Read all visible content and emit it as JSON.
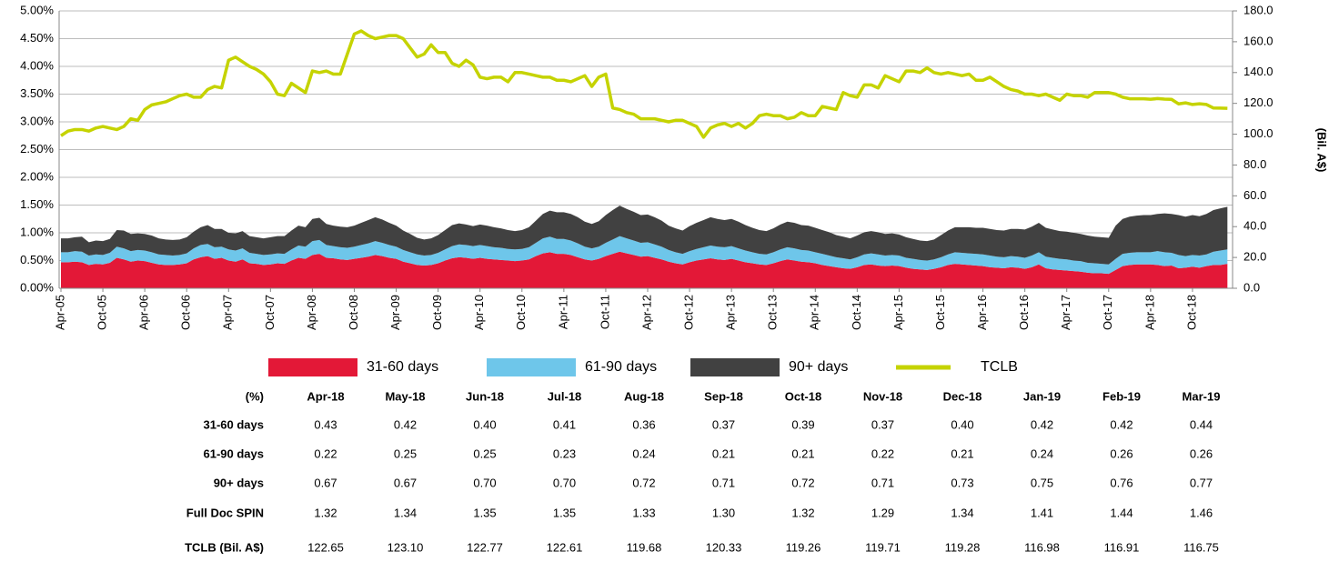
{
  "chart_data": {
    "type": "stacked-area-line",
    "categories": [
      "Apr-05",
      null,
      null,
      null,
      null,
      null,
      "Oct-05",
      null,
      null,
      null,
      null,
      null,
      "Apr-06",
      null,
      null,
      null,
      null,
      null,
      "Oct-06",
      null,
      null,
      null,
      null,
      null,
      "Apr-07",
      null,
      null,
      null,
      null,
      null,
      "Oct-07",
      null,
      null,
      null,
      null,
      null,
      "Apr-08",
      null,
      null,
      null,
      null,
      null,
      "Oct-08",
      null,
      null,
      null,
      null,
      null,
      "Apr-09",
      null,
      null,
      null,
      null,
      null,
      "Oct-09",
      null,
      null,
      null,
      null,
      null,
      "Apr-10",
      null,
      null,
      null,
      null,
      null,
      "Oct-10",
      null,
      null,
      null,
      null,
      null,
      "Apr-11",
      null,
      null,
      null,
      null,
      null,
      "Oct-11",
      null,
      null,
      null,
      null,
      null,
      "Apr-12",
      null,
      null,
      null,
      null,
      null,
      "Oct-12",
      null,
      null,
      null,
      null,
      null,
      "Apr-13",
      null,
      null,
      null,
      null,
      null,
      "Oct-13",
      null,
      null,
      null,
      null,
      null,
      "Apr-14",
      null,
      null,
      null,
      null,
      null,
      "Oct-14",
      null,
      null,
      null,
      null,
      null,
      "Apr-15",
      null,
      null,
      null,
      null,
      null,
      "Oct-15",
      null,
      null,
      null,
      null,
      null,
      "Apr-16",
      null,
      null,
      null,
      null,
      null,
      "Oct-16",
      null,
      null,
      null,
      null,
      null,
      "Apr-17",
      null,
      null,
      null,
      null,
      null,
      "Oct-17",
      null,
      null,
      null,
      null,
      null,
      "Apr-18",
      null,
      null,
      null,
      null,
      null,
      "Oct-18",
      null,
      null,
      null,
      null,
      null
    ],
    "series": [
      {
        "name": "31-60 days",
        "color": "#e31837",
        "values": [
          0.47,
          0.47,
          0.48,
          0.47,
          0.42,
          0.44,
          0.43,
          0.46,
          0.55,
          0.52,
          0.48,
          0.5,
          0.49,
          0.46,
          0.43,
          0.42,
          0.42,
          0.43,
          0.45,
          0.52,
          0.56,
          0.58,
          0.53,
          0.55,
          0.5,
          0.48,
          0.52,
          0.45,
          0.44,
          0.42,
          0.43,
          0.45,
          0.44,
          0.5,
          0.55,
          0.53,
          0.6,
          0.62,
          0.55,
          0.54,
          0.52,
          0.51,
          0.53,
          0.55,
          0.57,
          0.6,
          0.58,
          0.55,
          0.53,
          0.48,
          0.45,
          0.42,
          0.41,
          0.42,
          0.45,
          0.5,
          0.54,
          0.56,
          0.55,
          0.53,
          0.55,
          0.53,
          0.52,
          0.51,
          0.5,
          0.49,
          0.5,
          0.52,
          0.58,
          0.63,
          0.65,
          0.62,
          0.62,
          0.6,
          0.56,
          0.52,
          0.5,
          0.53,
          0.58,
          0.62,
          0.66,
          0.63,
          0.6,
          0.57,
          0.58,
          0.55,
          0.52,
          0.48,
          0.45,
          0.43,
          0.47,
          0.5,
          0.52,
          0.54,
          0.52,
          0.51,
          0.53,
          0.5,
          0.47,
          0.45,
          0.43,
          0.42,
          0.45,
          0.49,
          0.52,
          0.5,
          0.48,
          0.47,
          0.45,
          0.42,
          0.4,
          0.38,
          0.36,
          0.35,
          0.38,
          0.42,
          0.43,
          0.41,
          0.4,
          0.41,
          0.4,
          0.37,
          0.35,
          0.34,
          0.33,
          0.35,
          0.38,
          0.42,
          0.44,
          0.43,
          0.42,
          0.41,
          0.4,
          0.38,
          0.37,
          0.36,
          0.38,
          0.37,
          0.35,
          0.38,
          0.43,
          0.36,
          0.34,
          0.33,
          0.32,
          0.31,
          0.3,
          0.28,
          0.27,
          0.27,
          0.26,
          0.33,
          0.4,
          0.42,
          0.43,
          0.43,
          0.43,
          0.42,
          0.4,
          0.41,
          0.36,
          0.37,
          0.39,
          0.37,
          0.4,
          0.42,
          0.42,
          0.44
        ]
      },
      {
        "name": "61-90 days",
        "color": "#6ec6ea",
        "values": [
          0.18,
          0.18,
          0.19,
          0.19,
          0.17,
          0.17,
          0.17,
          0.18,
          0.2,
          0.2,
          0.19,
          0.19,
          0.19,
          0.19,
          0.18,
          0.18,
          0.17,
          0.17,
          0.18,
          0.2,
          0.22,
          0.22,
          0.21,
          0.2,
          0.2,
          0.2,
          0.2,
          0.19,
          0.18,
          0.18,
          0.18,
          0.18,
          0.18,
          0.2,
          0.22,
          0.22,
          0.25,
          0.25,
          0.23,
          0.22,
          0.22,
          0.22,
          0.22,
          0.23,
          0.24,
          0.25,
          0.24,
          0.23,
          0.22,
          0.21,
          0.2,
          0.19,
          0.18,
          0.18,
          0.19,
          0.2,
          0.22,
          0.23,
          0.23,
          0.23,
          0.23,
          0.23,
          0.22,
          0.22,
          0.21,
          0.21,
          0.21,
          0.22,
          0.24,
          0.27,
          0.28,
          0.27,
          0.27,
          0.26,
          0.25,
          0.23,
          0.22,
          0.22,
          0.24,
          0.26,
          0.28,
          0.27,
          0.26,
          0.25,
          0.25,
          0.24,
          0.23,
          0.21,
          0.2,
          0.19,
          0.2,
          0.21,
          0.22,
          0.23,
          0.23,
          0.23,
          0.23,
          0.22,
          0.21,
          0.2,
          0.19,
          0.19,
          0.2,
          0.21,
          0.22,
          0.22,
          0.21,
          0.21,
          0.2,
          0.2,
          0.19,
          0.18,
          0.18,
          0.17,
          0.18,
          0.19,
          0.2,
          0.2,
          0.19,
          0.19,
          0.19,
          0.18,
          0.18,
          0.17,
          0.17,
          0.17,
          0.18,
          0.19,
          0.21,
          0.21,
          0.21,
          0.21,
          0.21,
          0.21,
          0.2,
          0.2,
          0.2,
          0.2,
          0.2,
          0.21,
          0.22,
          0.21,
          0.21,
          0.2,
          0.2,
          0.19,
          0.19,
          0.18,
          0.18,
          0.17,
          0.17,
          0.2,
          0.22,
          0.22,
          0.22,
          0.22,
          0.22,
          0.25,
          0.25,
          0.23,
          0.24,
          0.21,
          0.21,
          0.22,
          0.21,
          0.24,
          0.26,
          0.26
        ]
      },
      {
        "name": "90+ days",
        "color": "#414141",
        "values": [
          0.25,
          0.25,
          0.25,
          0.27,
          0.24,
          0.25,
          0.25,
          0.25,
          0.3,
          0.32,
          0.31,
          0.3,
          0.3,
          0.3,
          0.29,
          0.28,
          0.28,
          0.28,
          0.29,
          0.3,
          0.32,
          0.34,
          0.33,
          0.32,
          0.3,
          0.31,
          0.31,
          0.3,
          0.3,
          0.3,
          0.31,
          0.31,
          0.32,
          0.34,
          0.36,
          0.35,
          0.4,
          0.4,
          0.38,
          0.37,
          0.37,
          0.37,
          0.38,
          0.4,
          0.42,
          0.43,
          0.42,
          0.4,
          0.38,
          0.35,
          0.33,
          0.3,
          0.29,
          0.3,
          0.32,
          0.35,
          0.38,
          0.38,
          0.37,
          0.36,
          0.37,
          0.37,
          0.36,
          0.35,
          0.34,
          0.33,
          0.34,
          0.36,
          0.4,
          0.44,
          0.47,
          0.48,
          0.48,
          0.48,
          0.47,
          0.45,
          0.44,
          0.46,
          0.5,
          0.53,
          0.55,
          0.53,
          0.52,
          0.5,
          0.5,
          0.49,
          0.47,
          0.44,
          0.43,
          0.42,
          0.45,
          0.47,
          0.49,
          0.51,
          0.5,
          0.49,
          0.49,
          0.48,
          0.46,
          0.44,
          0.43,
          0.42,
          0.43,
          0.45,
          0.46,
          0.46,
          0.45,
          0.45,
          0.44,
          0.43,
          0.42,
          0.4,
          0.39,
          0.38,
          0.39,
          0.4,
          0.4,
          0.4,
          0.39,
          0.39,
          0.38,
          0.37,
          0.36,
          0.35,
          0.35,
          0.36,
          0.4,
          0.43,
          0.45,
          0.46,
          0.47,
          0.47,
          0.48,
          0.48,
          0.48,
          0.48,
          0.49,
          0.5,
          0.51,
          0.52,
          0.53,
          0.52,
          0.51,
          0.5,
          0.5,
          0.5,
          0.49,
          0.49,
          0.48,
          0.48,
          0.48,
          0.6,
          0.63,
          0.65,
          0.66,
          0.67,
          0.67,
          0.67,
          0.7,
          0.7,
          0.72,
          0.71,
          0.72,
          0.71,
          0.73,
          0.75,
          0.76,
          0.77
        ]
      },
      {
        "name": "TCLB",
        "color": "#c5d300",
        "axis": "y2",
        "values": [
          99,
          102,
          103,
          103,
          102,
          104,
          105,
          104,
          103,
          105,
          110,
          109,
          116,
          119,
          120,
          121,
          123,
          125,
          126,
          124,
          124,
          129,
          131,
          130,
          148,
          150,
          147,
          144,
          142,
          139,
          134,
          126,
          125,
          133,
          130,
          127,
          141,
          140,
          141,
          139,
          139,
          152,
          165,
          167,
          164,
          162,
          163,
          164,
          164,
          162,
          156,
          150,
          152,
          158,
          153,
          153,
          146,
          144,
          148,
          145,
          137,
          136,
          137,
          137,
          134,
          140,
          140,
          139,
          138,
          137,
          137,
          135,
          135,
          134,
          136,
          138,
          131,
          137,
          139,
          117,
          116,
          114,
          113,
          110,
          110,
          110,
          109,
          108,
          109,
          109,
          107,
          105,
          98,
          104,
          106,
          107,
          105,
          107,
          104,
          107,
          112,
          113,
          112,
          112,
          110,
          111,
          114,
          112,
          112,
          118,
          117,
          116,
          127,
          125,
          124,
          132,
          132,
          130,
          138,
          136,
          134,
          141,
          141,
          140,
          143,
          140,
          139,
          140,
          139,
          138,
          139,
          135,
          135,
          137,
          134,
          131,
          129,
          128,
          126,
          126,
          125,
          126,
          124,
          122,
          126,
          125,
          125,
          124,
          127,
          127,
          127,
          126,
          124,
          123,
          123,
          123,
          122.65,
          123.1,
          122.77,
          122.61,
          119.68,
          120.33,
          119.26,
          119.71,
          119.28,
          116.98,
          116.91,
          116.75
        ]
      }
    ],
    "ylim": [
      0,
      5
    ],
    "yticks": [
      {
        "value": 0,
        "label": "0.00%"
      },
      {
        "value": 0.5,
        "label": "0.50%"
      },
      {
        "value": 1,
        "label": "1.00%"
      },
      {
        "value": 1.5,
        "label": "1.50%"
      },
      {
        "value": 2,
        "label": "2.00%"
      },
      {
        "value": 2.5,
        "label": "2.50%"
      },
      {
        "value": 3,
        "label": "3.00%"
      },
      {
        "value": 3.5,
        "label": "3.50%"
      },
      {
        "value": 4,
        "label": "4.00%"
      },
      {
        "value": 4.5,
        "label": "4.50%"
      },
      {
        "value": 5,
        "label": "5.00%"
      }
    ],
    "y2lim": [
      0,
      180
    ],
    "y2ticks": [
      {
        "value": 0,
        "label": "0.0"
      },
      {
        "value": 20,
        "label": "20.0"
      },
      {
        "value": 40,
        "label": "40.0"
      },
      {
        "value": 60,
        "label": "60.0"
      },
      {
        "value": 80,
        "label": "80.0"
      },
      {
        "value": 100,
        "label": "100.0"
      },
      {
        "value": 120,
        "label": "120.0"
      },
      {
        "value": 140,
        "label": "140.0"
      },
      {
        "value": 160,
        "label": "160.0"
      },
      {
        "value": 180,
        "label": "180.0"
      }
    ],
    "y2label": "(Bil. A$)",
    "grid": true,
    "legend": "bottom"
  },
  "table": {
    "header": [
      "(%)",
      "Apr-18",
      "May-18",
      "Jun-18",
      "Jul-18",
      "Aug-18",
      "Sep-18",
      "Oct-18",
      "Nov-18",
      "Dec-18",
      "Jan-19",
      "Feb-19",
      "Mar-19"
    ],
    "rows": [
      [
        "31-60 days",
        "0.43",
        "0.42",
        "0.40",
        "0.41",
        "0.36",
        "0.37",
        "0.39",
        "0.37",
        "0.40",
        "0.42",
        "0.42",
        "0.44"
      ],
      [
        "61-90 days",
        "0.22",
        "0.25",
        "0.25",
        "0.23",
        "0.24",
        "0.21",
        "0.21",
        "0.22",
        "0.21",
        "0.24",
        "0.26",
        "0.26"
      ],
      [
        "90+ days",
        "0.67",
        "0.67",
        "0.70",
        "0.70",
        "0.72",
        "0.71",
        "0.72",
        "0.71",
        "0.73",
        "0.75",
        "0.76",
        "0.77"
      ],
      [
        "Full Doc SPIN",
        "1.32",
        "1.34",
        "1.35",
        "1.35",
        "1.33",
        "1.30",
        "1.32",
        "1.29",
        "1.34",
        "1.41",
        "1.44",
        "1.46"
      ],
      [
        "TCLB (Bil. A$)",
        "122.65",
        "123.10",
        "122.77",
        "122.61",
        "119.68",
        "120.33",
        "119.26",
        "119.71",
        "119.28",
        "116.98",
        "116.91",
        "116.75"
      ]
    ]
  }
}
